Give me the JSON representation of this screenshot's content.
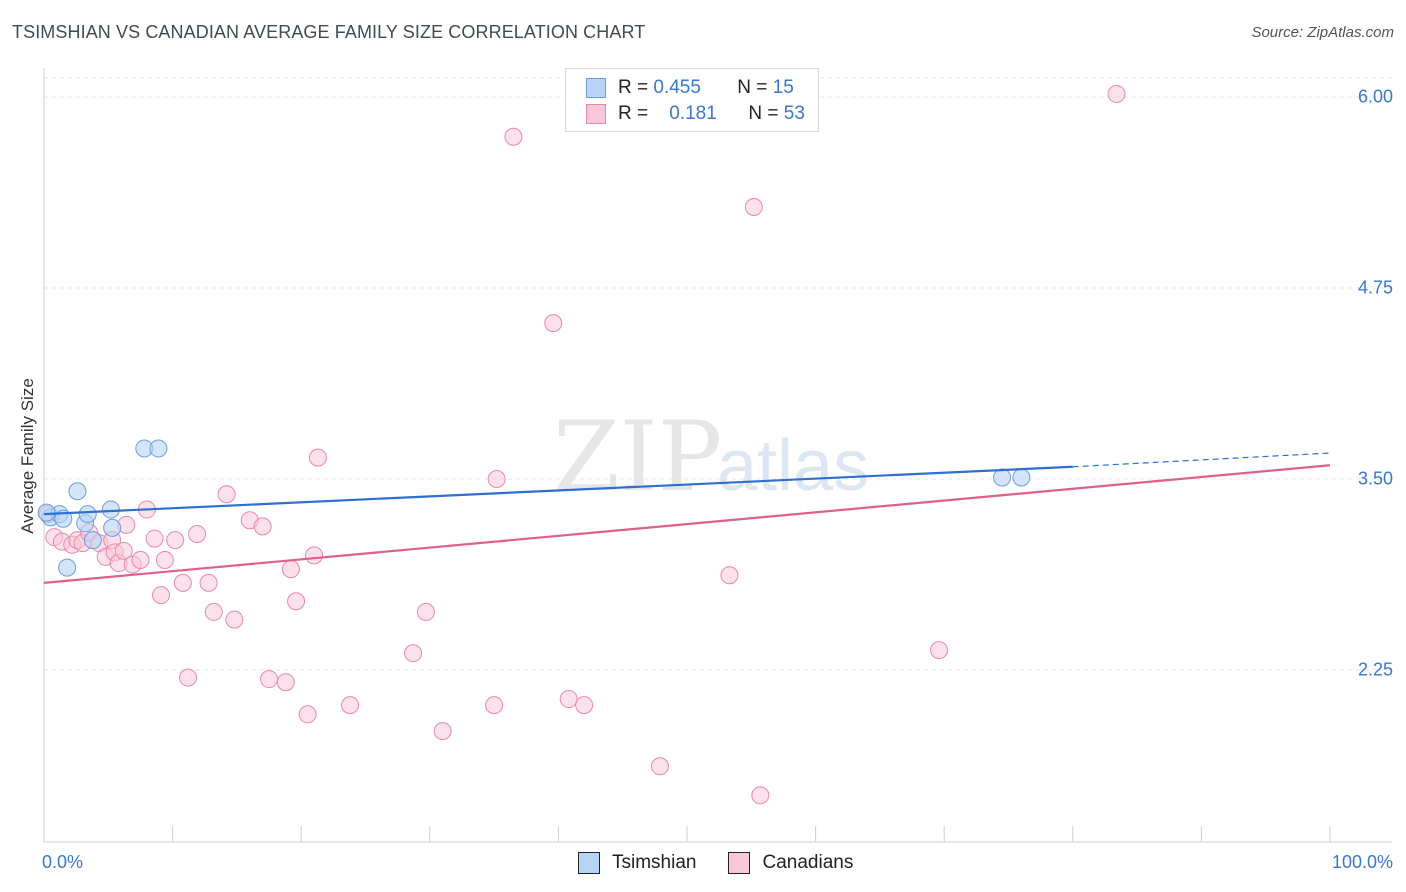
{
  "header": {
    "title": "TSIMSHIAN VS CANADIAN AVERAGE FAMILY SIZE CORRELATION CHART",
    "source": "Source: ZipAtlas.com"
  },
  "watermark": {
    "zip": "ZIP",
    "atlas": "atlas"
  },
  "legend": {
    "r_label": "R =",
    "n_label": "N =",
    "series1": {
      "r": "0.455",
      "n": "15"
    },
    "series2": {
      "r": "0.181",
      "n": "53"
    }
  },
  "bottom_legend": {
    "series1": "Tsimshian",
    "series2": "Canadians"
  },
  "colors": {
    "tsimshian_fill": "#b8d4f5",
    "tsimshian_stroke": "#6b9ee0",
    "tsimshian_line": "#2e6fd0",
    "canadians_fill": "#f9c8d8",
    "canadians_stroke": "#e889a9",
    "canadians_line": "#e0608a",
    "tick_text": "#3a78c9"
  },
  "chart_data": {
    "type": "scatter",
    "title": "TSIMSHIAN VS CANADIAN AVERAGE FAMILY SIZE CORRELATION CHART",
    "xlabel": "",
    "ylabel": "Average Family Size",
    "xlim": [
      0,
      100
    ],
    "ylim": [
      1.0,
      6.2
    ],
    "y_ticks": [
      2.25,
      3.5,
      4.75,
      6.0
    ],
    "y_tick_labels": [
      "2.25",
      "3.50",
      "4.75",
      "6.00"
    ],
    "x_tick_labels": [
      "0.0%",
      "100.0%"
    ],
    "grid": true,
    "series": [
      {
        "name": "Tsimshian",
        "r": 0.455,
        "n": 15,
        "points": [
          [
            0.5,
            3.25
          ],
          [
            1.2,
            3.27
          ],
          [
            1.8,
            2.92
          ],
          [
            2.6,
            3.42
          ],
          [
            3.2,
            3.21
          ],
          [
            3.4,
            3.27
          ],
          [
            3.8,
            3.1
          ],
          [
            5.3,
            3.18
          ],
          [
            7.8,
            3.7
          ],
          [
            8.9,
            3.7
          ],
          [
            74.5,
            3.51
          ],
          [
            76.0,
            3.51
          ],
          [
            0.2,
            3.28
          ],
          [
            1.5,
            3.24
          ],
          [
            5.2,
            3.3
          ]
        ],
        "trend": {
          "x0": 0,
          "y0": 3.27,
          "x1": 80,
          "y1": 3.58,
          "dash_to_x": 100,
          "dash_to_y": 3.67
        }
      },
      {
        "name": "Canadians",
        "r": 0.181,
        "n": 53,
        "points": [
          [
            0.3,
            3.27
          ],
          [
            0.8,
            3.12
          ],
          [
            1.4,
            3.09
          ],
          [
            2.2,
            3.07
          ],
          [
            2.6,
            3.1
          ],
          [
            3.0,
            3.08
          ],
          [
            3.5,
            3.15
          ],
          [
            4.3,
            3.08
          ],
          [
            4.8,
            2.99
          ],
          [
            5.3,
            3.1
          ],
          [
            5.5,
            3.02
          ],
          [
            5.8,
            2.95
          ],
          [
            6.2,
            3.03
          ],
          [
            6.4,
            3.2
          ],
          [
            6.9,
            2.94
          ],
          [
            7.5,
            2.97
          ],
          [
            8.0,
            3.3
          ],
          [
            8.6,
            3.11
          ],
          [
            9.1,
            2.74
          ],
          [
            9.4,
            2.97
          ],
          [
            10.2,
            3.1
          ],
          [
            10.8,
            2.82
          ],
          [
            11.2,
            2.2
          ],
          [
            11.9,
            3.14
          ],
          [
            12.8,
            2.82
          ],
          [
            13.2,
            2.63
          ],
          [
            14.2,
            3.4
          ],
          [
            14.8,
            2.58
          ],
          [
            16.0,
            3.23
          ],
          [
            17.0,
            3.19
          ],
          [
            17.5,
            2.19
          ],
          [
            18.8,
            2.17
          ],
          [
            19.2,
            2.91
          ],
          [
            19.6,
            2.7
          ],
          [
            20.5,
            1.96
          ],
          [
            21.0,
            3.0
          ],
          [
            21.3,
            3.64
          ],
          [
            23.8,
            2.02
          ],
          [
            28.7,
            2.36
          ],
          [
            29.7,
            2.63
          ],
          [
            31.0,
            1.85
          ],
          [
            35.0,
            2.02
          ],
          [
            35.2,
            3.5
          ],
          [
            36.5,
            5.74
          ],
          [
            39.6,
            4.52
          ],
          [
            40.8,
            2.06
          ],
          [
            42.0,
            2.02
          ],
          [
            47.9,
            1.62
          ],
          [
            53.3,
            2.87
          ],
          [
            55.2,
            5.28
          ],
          [
            55.7,
            1.43
          ],
          [
            69.6,
            2.38
          ],
          [
            83.4,
            6.02
          ]
        ],
        "trend": {
          "x0": 0,
          "y0": 2.82,
          "x1": 100,
          "y1": 3.59
        }
      }
    ]
  }
}
